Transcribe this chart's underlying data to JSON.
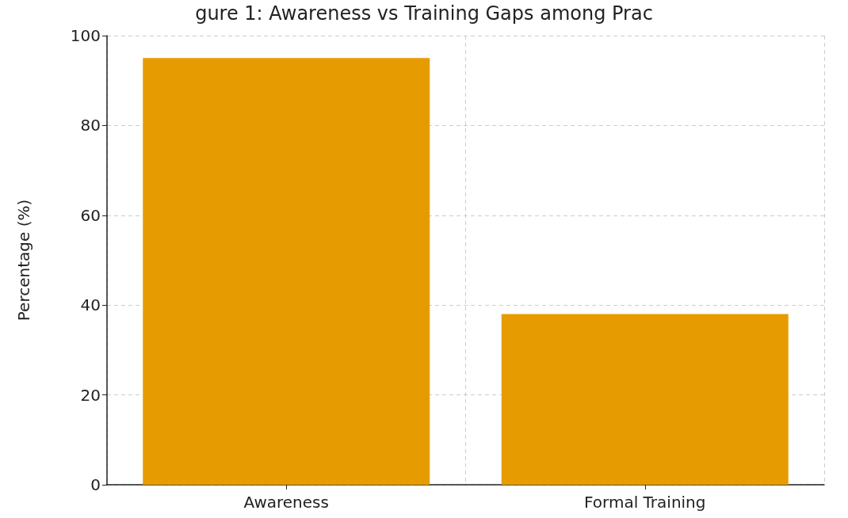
{
  "chart_data": {
    "type": "bar",
    "title": "gure 1: Awareness vs Training Gaps among Prac",
    "ylabel": "Percentage (%)",
    "categories": [
      "Awareness",
      "Formal Training"
    ],
    "values": [
      95,
      38
    ],
    "color": "#e69c00",
    "ylim": [
      0,
      100
    ],
    "yticks": [
      0,
      20,
      40,
      60,
      80,
      100
    ],
    "grid": true
  }
}
